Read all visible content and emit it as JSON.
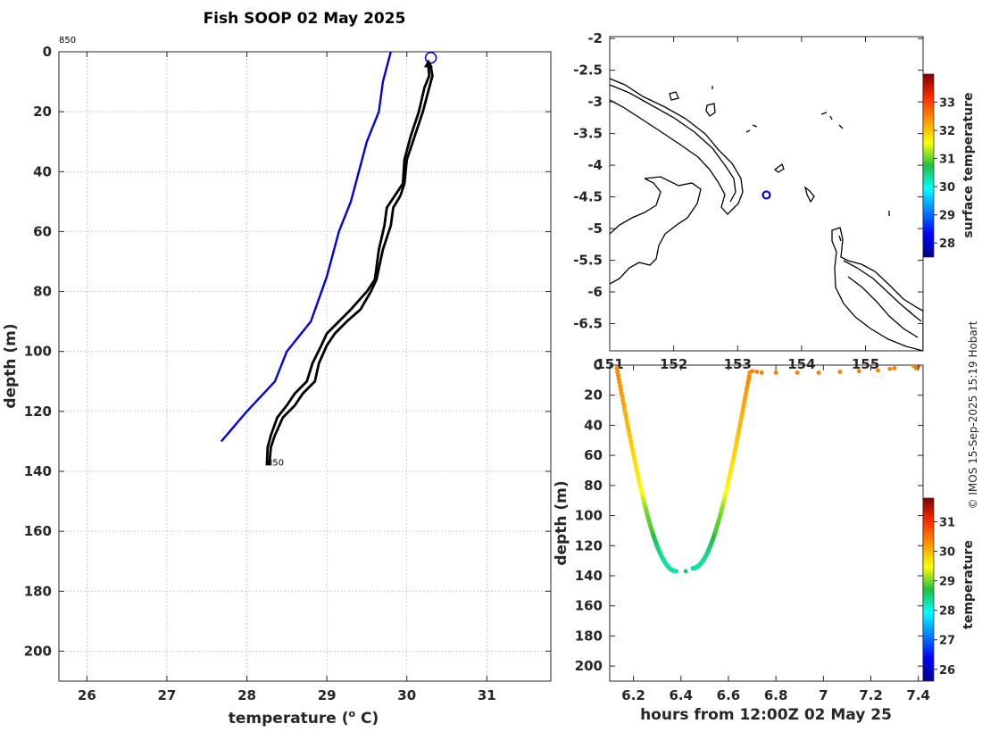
{
  "title": "Fish SOOP 02 May 2025",
  "credit": "© IMOS 15-Sep-2025 15:19 Hobart",
  "chart_data": [
    {
      "type": "line",
      "name": "profile",
      "xlabel": "temperature (° C)",
      "xlabel_main": "temperature (",
      "xlabel_sup": "o",
      "xlabel_end": " C)",
      "ylabel": "depth (m)",
      "xlim": [
        25.65,
        31.8
      ],
      "ylim": [
        0,
        210
      ],
      "y_reversed": true,
      "xticks": [
        26,
        27,
        28,
        29,
        30,
        31
      ],
      "yticks": [
        0,
        20,
        40,
        60,
        80,
        100,
        120,
        140,
        160,
        180,
        200
      ],
      "annotations": [
        {
          "text": "850",
          "x": 25.65,
          "y": -3
        },
        {
          "text": "850",
          "x": 28.25,
          "y": 138
        }
      ],
      "series": [
        {
          "name": "reference",
          "color": "#0000dd",
          "points": [
            [
              29.8,
              0
            ],
            [
              29.75,
              5
            ],
            [
              29.7,
              10
            ],
            [
              29.65,
              20
            ],
            [
              29.5,
              30
            ],
            [
              29.3,
              50
            ],
            [
              29.15,
              60
            ],
            [
              29.0,
              75
            ],
            [
              28.8,
              90
            ],
            [
              28.5,
              100
            ],
            [
              28.35,
              110
            ],
            [
              28.0,
              120
            ],
            [
              27.68,
              130
            ]
          ]
        },
        {
          "name": "profile-1",
          "color": "#000000",
          "points": [
            [
              30.3,
              5
            ],
            [
              30.32,
              8
            ],
            [
              30.28,
              12
            ],
            [
              30.2,
              20
            ],
            [
              30.1,
              28
            ],
            [
              30.0,
              36
            ],
            [
              29.97,
              44
            ],
            [
              29.92,
              48
            ],
            [
              29.83,
              52
            ],
            [
              29.8,
              58
            ],
            [
              29.7,
              66
            ],
            [
              29.62,
              76
            ],
            [
              29.55,
              80
            ],
            [
              29.42,
              86
            ],
            [
              29.25,
              90
            ],
            [
              29.1,
              94
            ],
            [
              29.0,
              98
            ],
            [
              28.9,
              104
            ],
            [
              28.85,
              110
            ],
            [
              28.7,
              114
            ],
            [
              28.6,
              118
            ],
            [
              28.45,
              122
            ],
            [
              28.35,
              128
            ],
            [
              28.3,
              132
            ],
            [
              28.28,
              138
            ]
          ]
        },
        {
          "name": "profile-2",
          "color": "#000000",
          "points": [
            [
              30.27,
              5
            ],
            [
              30.28,
              8
            ],
            [
              30.22,
              12
            ],
            [
              30.15,
              20
            ],
            [
              30.05,
              28
            ],
            [
              29.97,
              36
            ],
            [
              29.95,
              44
            ],
            [
              29.85,
              48
            ],
            [
              29.75,
              52
            ],
            [
              29.72,
              58
            ],
            [
              29.65,
              66
            ],
            [
              29.6,
              76
            ],
            [
              29.5,
              80
            ],
            [
              29.3,
              86
            ],
            [
              29.15,
              90
            ],
            [
              29.0,
              94
            ],
            [
              28.93,
              98
            ],
            [
              28.82,
              104
            ],
            [
              28.75,
              110
            ],
            [
              28.6,
              114
            ],
            [
              28.5,
              118
            ],
            [
              28.38,
              122
            ],
            [
              28.3,
              128
            ],
            [
              28.26,
              132
            ],
            [
              28.25,
              138
            ]
          ]
        }
      ],
      "markers": [
        {
          "type": "circle",
          "x": 30.3,
          "y": 2,
          "color": "#0000dd"
        },
        {
          "type": "triangle",
          "x": 30.27,
          "y": 4,
          "color": "#000000"
        }
      ]
    },
    {
      "type": "map",
      "name": "location",
      "xlim": [
        151,
        155.9
      ],
      "ylim": [
        -6.93,
        -1.97
      ],
      "xticks": [
        151,
        152,
        153,
        154,
        155
      ],
      "yticks": [
        -2,
        -2.5,
        -3,
        -3.5,
        -4,
        -4.5,
        -5,
        -5.5,
        -6,
        -6.5
      ],
      "station": {
        "lon": 153.45,
        "lat": -4.47,
        "color": "#0000dd"
      },
      "colorbar": {
        "label": "surface temperature",
        "range": [
          27.5,
          34.0
        ],
        "ticks": [
          28,
          29,
          30,
          31,
          32,
          33
        ]
      }
    },
    {
      "type": "scatter",
      "name": "timeseries",
      "xlabel": "hours from 12:00Z 02 May 25",
      "ylabel": "depth (m)",
      "xlim": [
        6.1,
        7.42
      ],
      "ylim": [
        0,
        210
      ],
      "y_reversed": true,
      "xticks": [
        6.2,
        6.4,
        6.6,
        6.8,
        7,
        7.2,
        7.4
      ],
      "yticks": [
        0,
        20,
        40,
        60,
        80,
        100,
        120,
        140,
        160,
        180,
        200
      ],
      "colorbar": {
        "label": "temperature",
        "range": [
          25.6,
          31.8
        ],
        "ticks": [
          26,
          27,
          28,
          29,
          30,
          31
        ]
      },
      "segments": [
        {
          "name": "descent",
          "t": [
            6.13,
            6.38
          ],
          "depth": [
            2,
            137
          ]
        },
        {
          "name": "ascent",
          "t": [
            6.45,
            6.69
          ],
          "depth": [
            135,
            5
          ]
        }
      ],
      "surface_points": [
        {
          "t": 6.7,
          "depth": 4,
          "temp": 30.4
        },
        {
          "t": 6.72,
          "depth": 4.5,
          "temp": 30.4
        },
        {
          "t": 6.74,
          "depth": 5,
          "temp": 30.4
        },
        {
          "t": 6.8,
          "depth": 5,
          "temp": 30.4
        },
        {
          "t": 6.89,
          "depth": 5,
          "temp": 30.4
        },
        {
          "t": 6.98,
          "depth": 5,
          "temp": 30.4
        },
        {
          "t": 7.07,
          "depth": 4.5,
          "temp": 30.4
        },
        {
          "t": 7.15,
          "depth": 4,
          "temp": 30.4
        },
        {
          "t": 7.23,
          "depth": 3.5,
          "temp": 30.4
        },
        {
          "t": 7.28,
          "depth": 2.5,
          "temp": 30.4
        },
        {
          "t": 7.3,
          "depth": 2,
          "temp": 30.4
        },
        {
          "t": 7.38,
          "depth": 0.5,
          "temp": 30.4
        },
        {
          "t": 7.39,
          "depth": 2,
          "temp": 30.4
        },
        {
          "t": 7.4,
          "depth": 1,
          "temp": 30.4
        }
      ],
      "bottom_points": [
        {
          "t": 6.42,
          "depth": 137,
          "temp": 28.6
        }
      ]
    }
  ]
}
